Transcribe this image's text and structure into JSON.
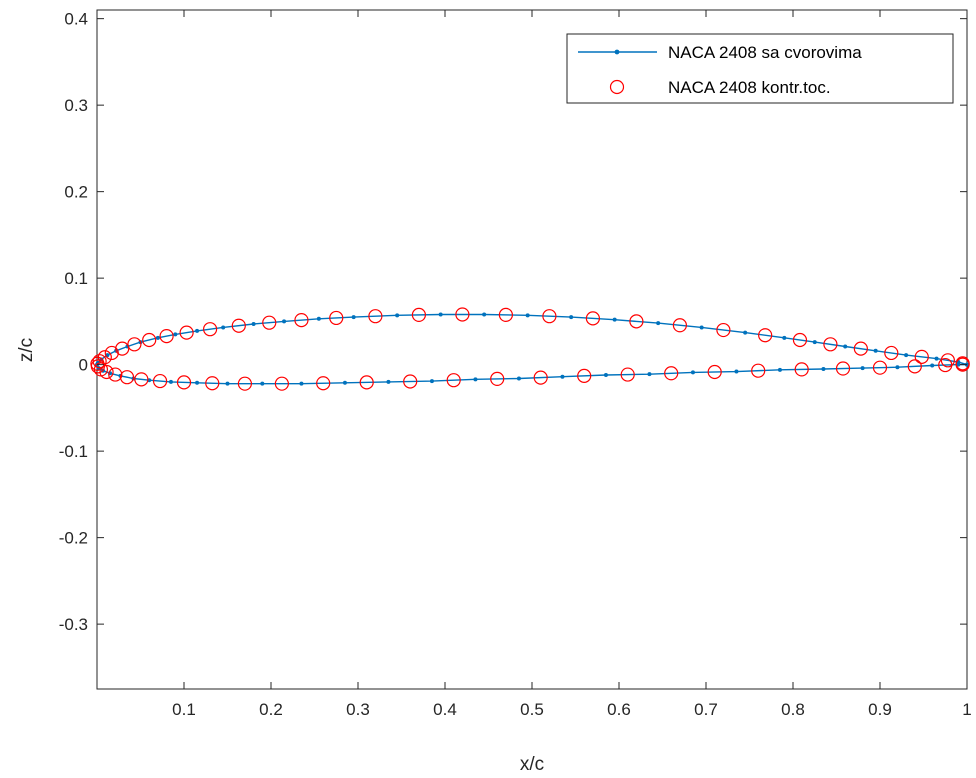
{
  "chart_data": {
    "type": "line",
    "xlabel": "x/c",
    "ylabel": "z/c",
    "xlim": [
      0,
      1
    ],
    "ylim": [
      -0.375,
      0.41
    ],
    "xticks": [
      0.1,
      0.2,
      0.3,
      0.4,
      0.5,
      0.6,
      0.7,
      0.8,
      0.9,
      1
    ],
    "xtick_labels": [
      "0.1",
      "0.2",
      "0.3",
      "0.4",
      "0.5",
      "0.6",
      "0.7",
      "0.8",
      "0.9",
      "1"
    ],
    "yticks": [
      0.4,
      0.3,
      0.2,
      0.1,
      0,
      -0.1,
      -0.2,
      -0.3
    ],
    "ytick_labels": [
      "0.4",
      "0.3",
      "0.2",
      "0.1",
      "0",
      "-0.1",
      "-0.2",
      "-0.3"
    ],
    "grid": false,
    "legend_position": "top-right",
    "series": [
      {
        "name": "NACA 2408 sa cvorovima",
        "style": "line-with-dot-markers",
        "color": "#0072BD",
        "x": [
          1.0,
          0.99,
          0.965,
          0.93,
          0.895,
          0.86,
          0.825,
          0.79,
          0.745,
          0.695,
          0.645,
          0.595,
          0.545,
          0.495,
          0.445,
          0.395,
          0.345,
          0.295,
          0.255,
          0.215,
          0.18,
          0.145,
          0.115,
          0.09,
          0.07,
          0.05,
          0.035,
          0.022,
          0.012,
          0.005,
          0.001,
          0.0,
          0.002,
          0.007,
          0.015,
          0.027,
          0.042,
          0.06,
          0.085,
          0.115,
          0.15,
          0.19,
          0.235,
          0.285,
          0.335,
          0.385,
          0.435,
          0.485,
          0.535,
          0.585,
          0.635,
          0.685,
          0.735,
          0.785,
          0.835,
          0.88,
          0.92,
          0.96,
          0.99,
          1.0
        ],
        "y": [
          0.0,
          0.003,
          0.007,
          0.011,
          0.016,
          0.021,
          0.026,
          0.031,
          0.037,
          0.043,
          0.048,
          0.052,
          0.055,
          0.057,
          0.058,
          0.058,
          0.057,
          0.055,
          0.053,
          0.05,
          0.047,
          0.043,
          0.039,
          0.035,
          0.031,
          0.026,
          0.021,
          0.016,
          0.011,
          0.006,
          0.002,
          0.0,
          -0.004,
          -0.007,
          -0.01,
          -0.013,
          -0.016,
          -0.018,
          -0.02,
          -0.021,
          -0.022,
          -0.022,
          -0.022,
          -0.021,
          -0.02,
          -0.019,
          -0.017,
          -0.016,
          -0.014,
          -0.012,
          -0.011,
          -0.009,
          -0.008,
          -0.006,
          -0.005,
          -0.004,
          -0.003,
          -0.001,
          0.0,
          0.0
        ]
      },
      {
        "name": "NACA 2408 kontr.toc.",
        "style": "open-circle-markers",
        "color": "#FF0000",
        "x": [
          0.995,
          0.978,
          0.948,
          0.913,
          0.878,
          0.843,
          0.808,
          0.768,
          0.72,
          0.67,
          0.62,
          0.57,
          0.52,
          0.47,
          0.42,
          0.37,
          0.32,
          0.275,
          0.235,
          0.198,
          0.163,
          0.13,
          0.103,
          0.08,
          0.06,
          0.043,
          0.029,
          0.017,
          0.009,
          0.003,
          0.0005,
          0.001,
          0.0045,
          0.011,
          0.021,
          0.0345,
          0.051,
          0.0725,
          0.1,
          0.1325,
          0.17,
          0.2125,
          0.26,
          0.31,
          0.36,
          0.41,
          0.46,
          0.51,
          0.56,
          0.61,
          0.66,
          0.71,
          0.76,
          0.81,
          0.8575,
          0.9,
          0.94,
          0.975,
          0.995
        ],
        "y": [
          0.0015,
          0.005,
          0.009,
          0.0135,
          0.0185,
          0.0235,
          0.0285,
          0.034,
          0.04,
          0.0455,
          0.05,
          0.0535,
          0.056,
          0.0575,
          0.058,
          0.0575,
          0.056,
          0.054,
          0.0515,
          0.0485,
          0.045,
          0.041,
          0.037,
          0.033,
          0.0285,
          0.0235,
          0.0185,
          0.0135,
          0.0085,
          0.004,
          0.001,
          -0.002,
          -0.0055,
          -0.0085,
          -0.0115,
          -0.0145,
          -0.017,
          -0.019,
          -0.0205,
          -0.0215,
          -0.022,
          -0.022,
          -0.0215,
          -0.0205,
          -0.0195,
          -0.018,
          -0.0165,
          -0.015,
          -0.013,
          -0.0115,
          -0.01,
          -0.0085,
          -0.007,
          -0.0055,
          -0.0045,
          -0.0035,
          -0.002,
          -0.0005,
          0.0
        ]
      }
    ]
  }
}
